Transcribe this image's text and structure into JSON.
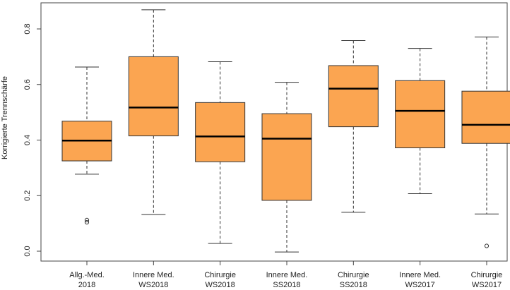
{
  "chart_data": {
    "type": "boxplot",
    "title": "",
    "xlabel": "",
    "ylabel": "Korrigierte Trennschärfe",
    "ylim": [
      -0.03,
      0.9
    ],
    "y_ticks": [
      0.0,
      0.2,
      0.4,
      0.6,
      0.8
    ],
    "y_tick_labels": [
      "0.0",
      "0.2",
      "0.4",
      "0.6",
      "0.8"
    ],
    "box_color": "#FBA551",
    "median_color": "#000000",
    "categories": [
      [
        "Allg.-Med.",
        "2018"
      ],
      [
        "Innere Med.",
        "WS2018"
      ],
      [
        "Chirurgie",
        "WS2018"
      ],
      [
        "Innere Med.",
        "SS2018"
      ],
      [
        "Chirurgie",
        "SS2018"
      ],
      [
        "Innere Med.",
        "WS2017"
      ],
      [
        "Chirurgie",
        "WS2017"
      ]
    ],
    "boxes": [
      {
        "whisker_low": 0.277,
        "q1": 0.325,
        "median": 0.398,
        "q3": 0.468,
        "whisker_high": 0.663,
        "outliers": [
          0.104,
          0.112
        ]
      },
      {
        "whisker_low": 0.132,
        "q1": 0.415,
        "median": 0.517,
        "q3": 0.7,
        "whisker_high": 0.869,
        "outliers": []
      },
      {
        "whisker_low": 0.028,
        "q1": 0.322,
        "median": 0.413,
        "q3": 0.535,
        "whisker_high": 0.682,
        "outliers": []
      },
      {
        "whisker_low": -0.003,
        "q1": 0.183,
        "median": 0.405,
        "q3": 0.495,
        "whisker_high": 0.608,
        "outliers": []
      },
      {
        "whisker_low": 0.14,
        "q1": 0.448,
        "median": 0.585,
        "q3": 0.668,
        "whisker_high": 0.758,
        "outliers": []
      },
      {
        "whisker_low": 0.207,
        "q1": 0.372,
        "median": 0.505,
        "q3": 0.614,
        "whisker_high": 0.73,
        "outliers": []
      },
      {
        "whisker_low": 0.134,
        "q1": 0.388,
        "median": 0.455,
        "q3": 0.576,
        "whisker_high": 0.771,
        "outliers": [
          0.019
        ]
      }
    ]
  }
}
